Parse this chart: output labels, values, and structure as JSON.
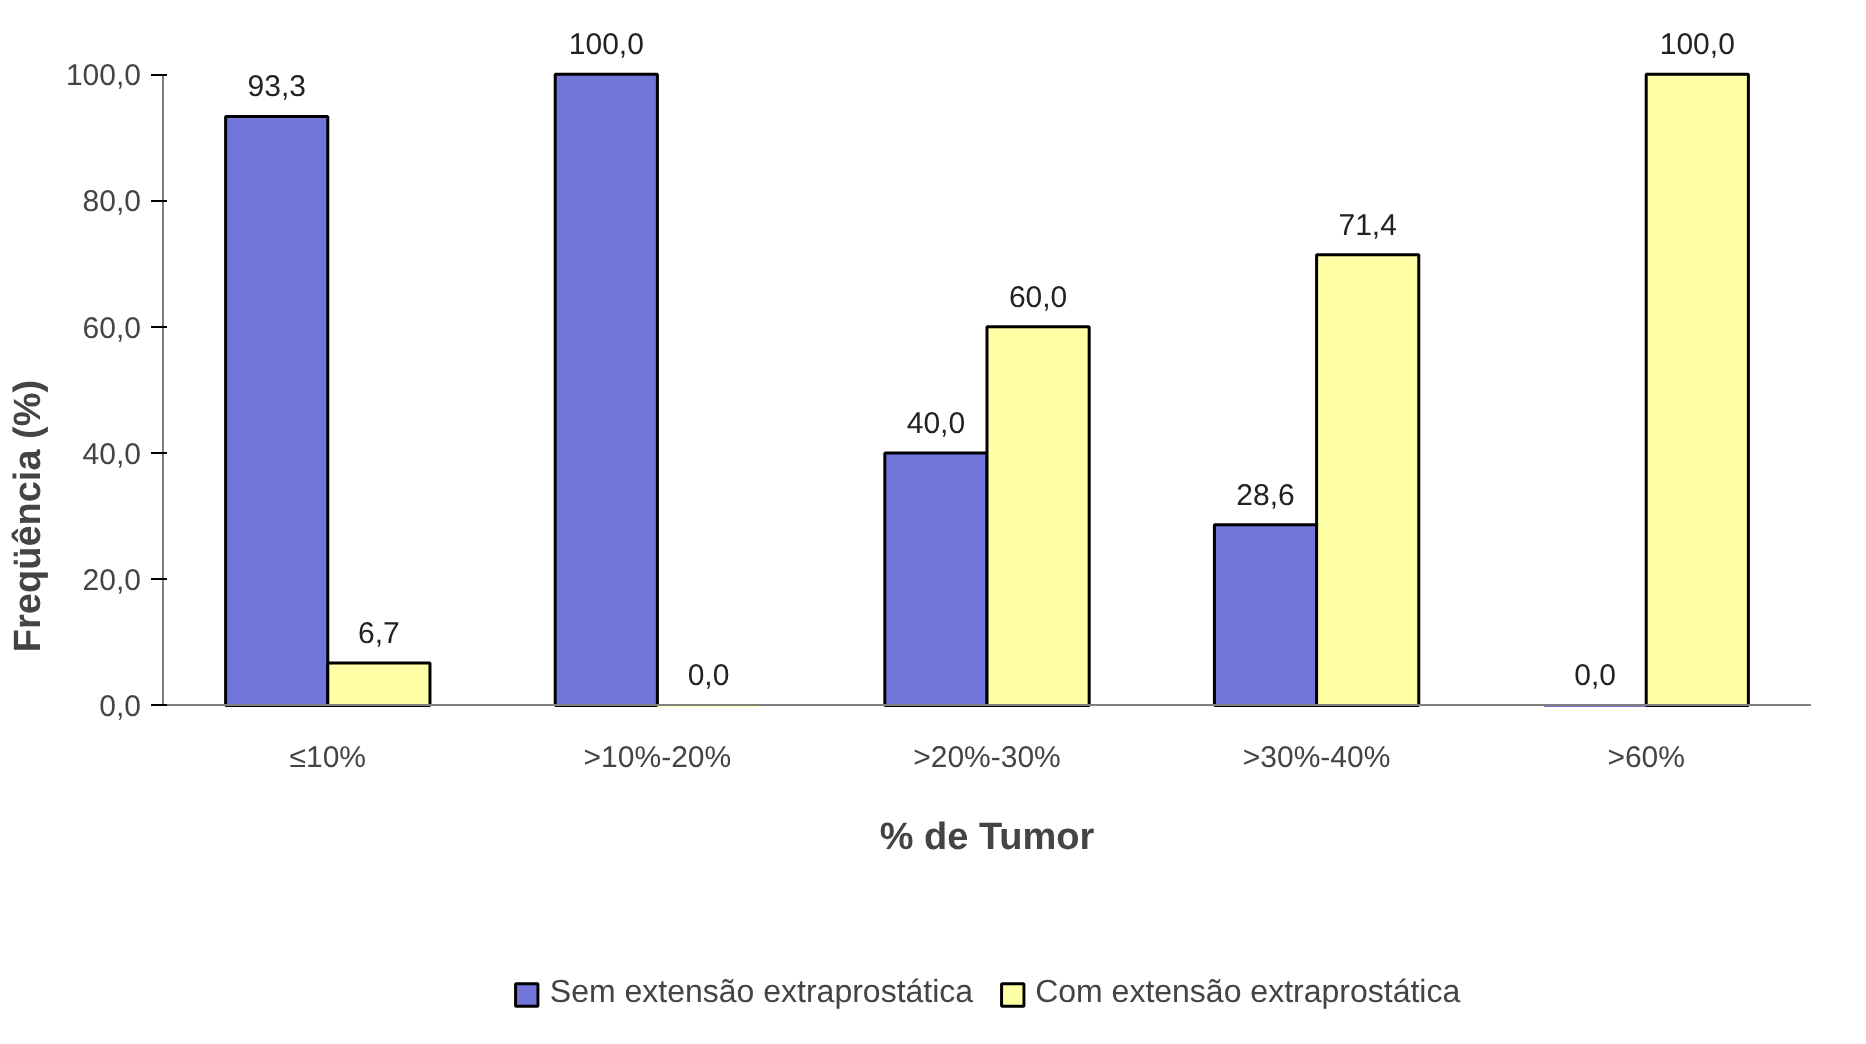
{
  "chart_data": {
    "type": "bar",
    "xlabel": "% de Tumor",
    "ylabel": "Freqüência (%)",
    "categories": [
      "≤10%",
      ">10%-20%",
      ">20%-30%",
      ">30%-40%",
      ">60%"
    ],
    "series": [
      {
        "name": "Sem extensão extraprostática",
        "color": "#7275d9",
        "values": [
          93.3,
          100.0,
          40.0,
          28.6,
          0.0
        ],
        "value_labels": [
          "93,3",
          "100,0",
          "40,0",
          "28,6",
          "0,0"
        ]
      },
      {
        "name": "Com extensão extraprostática",
        "color": "#ffffa6",
        "values": [
          6.7,
          0.0,
          60.0,
          71.4,
          100.0
        ],
        "value_labels": [
          "6,7",
          "0,0",
          "60,0",
          "71,4",
          "100,0"
        ]
      }
    ],
    "ylim": [
      0,
      100
    ],
    "yticks": [
      {
        "value": 0,
        "label": "0,0"
      },
      {
        "value": 20,
        "label": "20,0"
      },
      {
        "value": 40,
        "label": "40,0"
      },
      {
        "value": 60,
        "label": "60,0"
      },
      {
        "value": 80,
        "label": "80,0"
      },
      {
        "value": 100,
        "label": "100,0"
      }
    ],
    "grid": false,
    "legend": "bottom"
  }
}
